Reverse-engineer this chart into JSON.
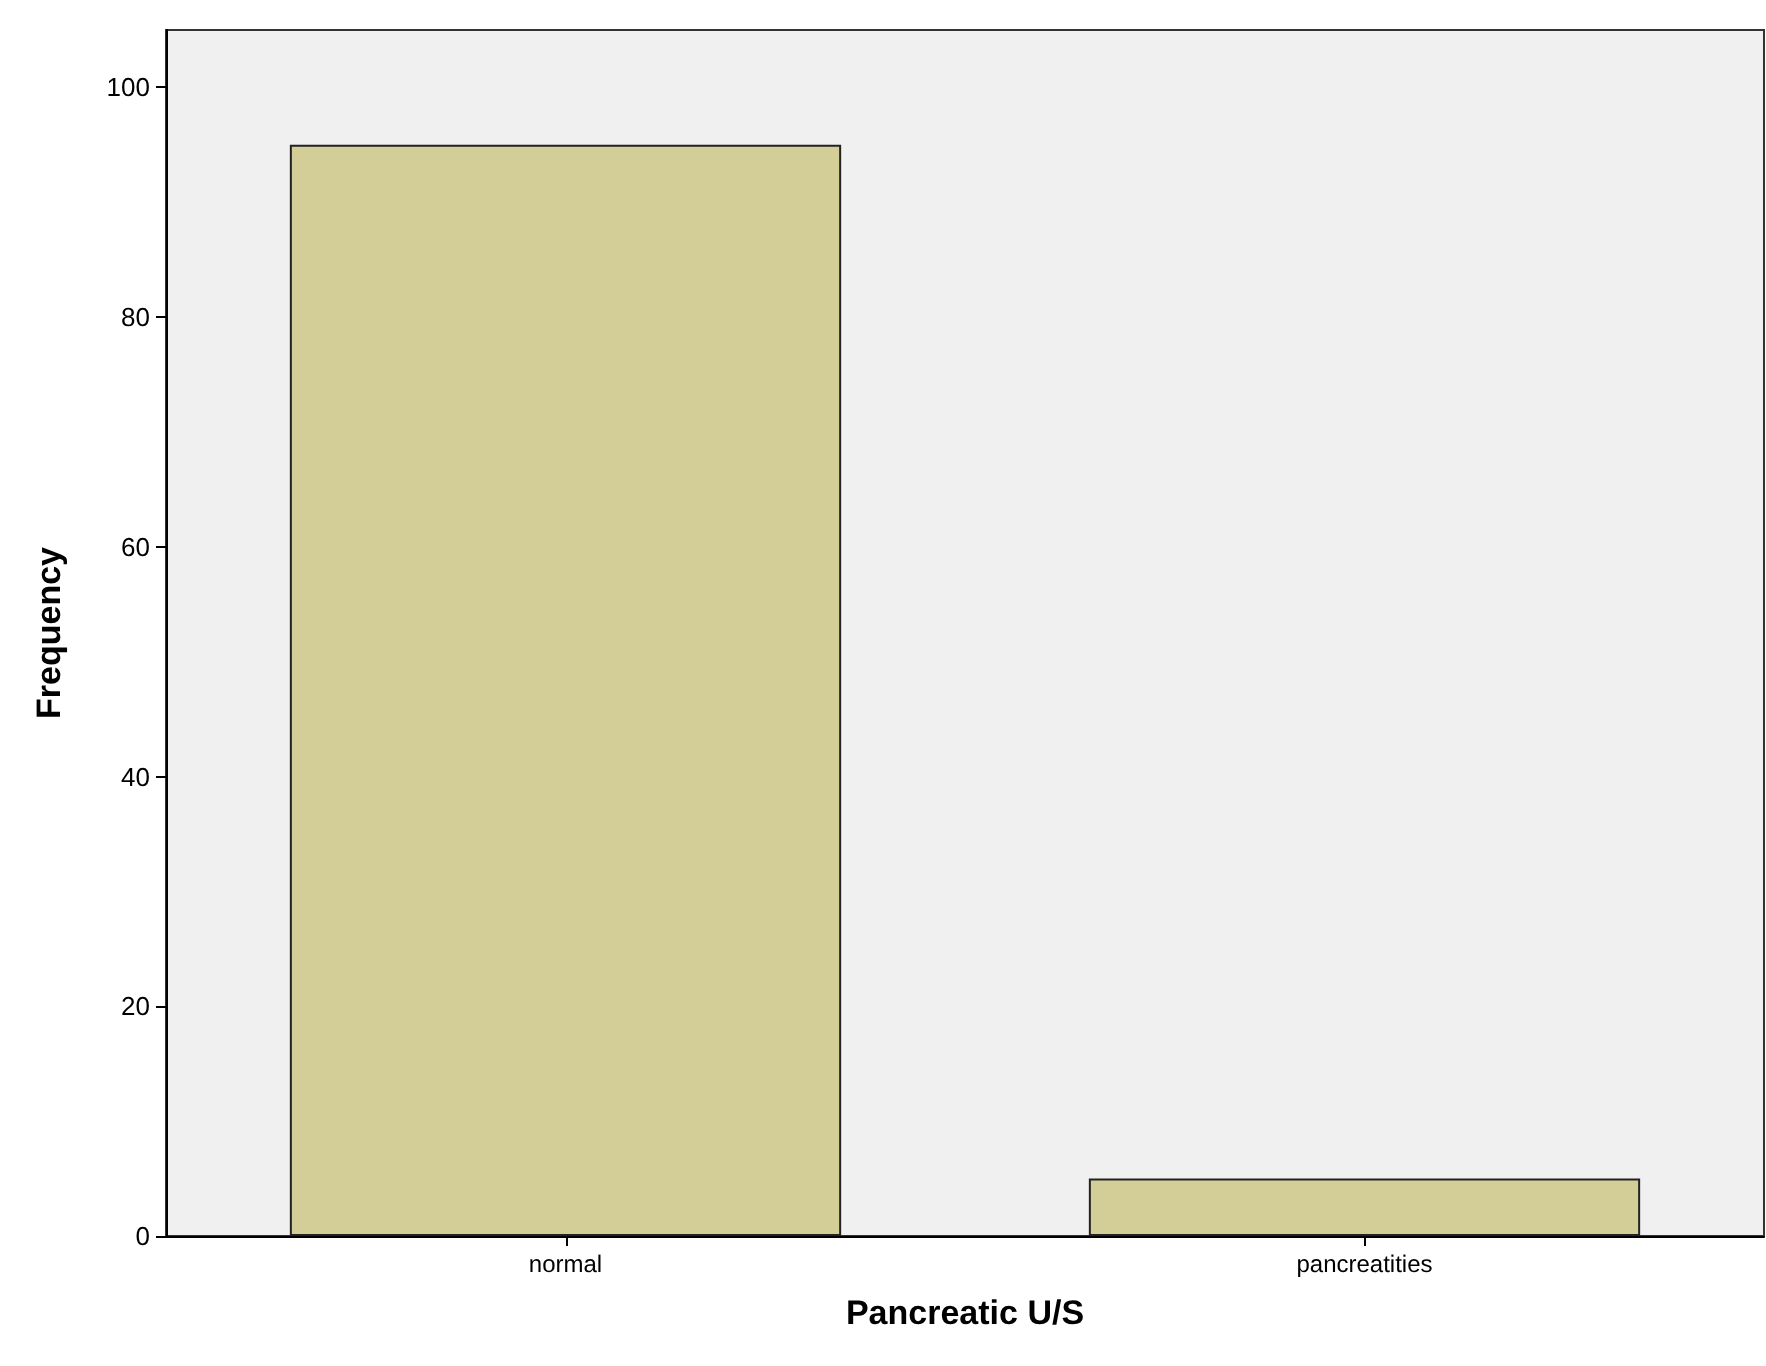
{
  "chart_data": {
    "type": "bar",
    "xlabel": "Pancreatic U/S",
    "ylabel": "Frequency",
    "categories": [
      "normal",
      "pancreatities"
    ],
    "values": [
      95,
      5
    ],
    "color": "#d3ce97",
    "ylim": [
      0,
      105
    ],
    "yticks": [
      0,
      20,
      40,
      60,
      80,
      100
    ],
    "grid": false
  }
}
